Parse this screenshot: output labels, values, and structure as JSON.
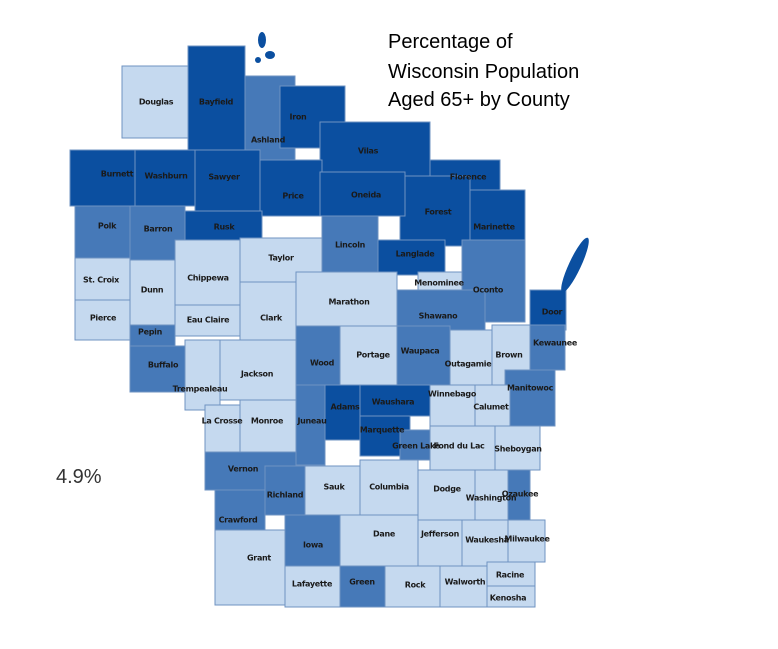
{
  "map": {
    "title_lines": [
      "Percentage of",
      "Wisconsin Population",
      "Aged 65+ by County"
    ],
    "label_fragment": "4.9%",
    "counties": [
      {
        "name": "Douglas",
        "color": "#c5d9ef"
      },
      {
        "name": "Bayfield",
        "color": "#0b4fa0"
      },
      {
        "name": "Ashland",
        "color": "#4679b8"
      },
      {
        "name": "Iron",
        "color": "#0b4fa0"
      },
      {
        "name": "Vilas",
        "color": "#0b4fa0"
      },
      {
        "name": "Florence",
        "color": "#0b4fa0"
      },
      {
        "name": "Forest",
        "color": "#0b4fa0"
      },
      {
        "name": "Marinette",
        "color": "#0b4fa0"
      },
      {
        "name": "Burnett",
        "color": "#0b4fa0"
      },
      {
        "name": "Washburn",
        "color": "#0b4fa0"
      },
      {
        "name": "Sawyer",
        "color": "#0b4fa0"
      },
      {
        "name": "Price",
        "color": "#0b4fa0"
      },
      {
        "name": "Oneida",
        "color": "#0b4fa0"
      },
      {
        "name": "Polk",
        "color": "#4679b8"
      },
      {
        "name": "Barron",
        "color": "#4679b8"
      },
      {
        "name": "Rusk",
        "color": "#0b4fa0"
      },
      {
        "name": "Lincoln",
        "color": "#4679b8"
      },
      {
        "name": "Langlade",
        "color": "#0b4fa0"
      },
      {
        "name": "Taylor",
        "color": "#c5d9ef"
      },
      {
        "name": "Chippewa",
        "color": "#c5d9ef"
      },
      {
        "name": "St. Croix",
        "color": "#c5d9ef"
      },
      {
        "name": "Dunn",
        "color": "#c5d9ef"
      },
      {
        "name": "Menominee",
        "color": "#c5d9ef"
      },
      {
        "name": "Oconto",
        "color": "#4679b8"
      },
      {
        "name": "Pierce",
        "color": "#c5d9ef"
      },
      {
        "name": "Pepin",
        "color": "#4679b8"
      },
      {
        "name": "Eau Claire",
        "color": "#c5d9ef"
      },
      {
        "name": "Clark",
        "color": "#c5d9ef"
      },
      {
        "name": "Marathon",
        "color": "#c5d9ef"
      },
      {
        "name": "Shawano",
        "color": "#4679b8"
      },
      {
        "name": "Door",
        "color": "#0b4fa0"
      },
      {
        "name": "Buffalo",
        "color": "#4679b8"
      },
      {
        "name": "Trempealeau",
        "color": "#c5d9ef"
      },
      {
        "name": "Jackson",
        "color": "#c5d9ef"
      },
      {
        "name": "Wood",
        "color": "#4679b8"
      },
      {
        "name": "Portage",
        "color": "#c5d9ef"
      },
      {
        "name": "Waupaca",
        "color": "#4679b8"
      },
      {
        "name": "Outagamie",
        "color": "#c5d9ef"
      },
      {
        "name": "Brown",
        "color": "#c5d9ef"
      },
      {
        "name": "Kewaunee",
        "color": "#4679b8"
      },
      {
        "name": "Manitowoc",
        "color": "#4679b8"
      },
      {
        "name": "Calumet",
        "color": "#c5d9ef"
      },
      {
        "name": "Winnebago",
        "color": "#c5d9ef"
      },
      {
        "name": "Waushara",
        "color": "#0b4fa0"
      },
      {
        "name": "Adams",
        "color": "#0b4fa0"
      },
      {
        "name": "Marquette",
        "color": "#0b4fa0"
      },
      {
        "name": "Green Lake",
        "color": "#4679b8"
      },
      {
        "name": "Fond du Lac",
        "color": "#c5d9ef"
      },
      {
        "name": "Sheboygan",
        "color": "#c5d9ef"
      },
      {
        "name": "La Crosse",
        "color": "#c5d9ef"
      },
      {
        "name": "Monroe",
        "color": "#c5d9ef"
      },
      {
        "name": "Juneau",
        "color": "#4679b8"
      },
      {
        "name": "Vernon",
        "color": "#4679b8"
      },
      {
        "name": "Richland",
        "color": "#4679b8"
      },
      {
        "name": "Sauk",
        "color": "#c5d9ef"
      },
      {
        "name": "Columbia",
        "color": "#c5d9ef"
      },
      {
        "name": "Dodge",
        "color": "#c5d9ef"
      },
      {
        "name": "Washington",
        "color": "#c5d9ef"
      },
      {
        "name": "Ozaukee",
        "color": "#4679b8"
      },
      {
        "name": "Crawford",
        "color": "#4679b8"
      },
      {
        "name": "Grant",
        "color": "#c5d9ef"
      },
      {
        "name": "Iowa",
        "color": "#4679b8"
      },
      {
        "name": "Dane",
        "color": "#c5d9ef"
      },
      {
        "name": "Jefferson",
        "color": "#c5d9ef"
      },
      {
        "name": "Waukesha",
        "color": "#c5d9ef"
      },
      {
        "name": "Milwaukee",
        "color": "#c5d9ef"
      },
      {
        "name": "Lafayette",
        "color": "#c5d9ef"
      },
      {
        "name": "Green",
        "color": "#4679b8"
      },
      {
        "name": "Rock",
        "color": "#c5d9ef"
      },
      {
        "name": "Walworth",
        "color": "#c5d9ef"
      },
      {
        "name": "Racine",
        "color": "#c5d9ef"
      },
      {
        "name": "Kenosha",
        "color": "#c5d9ef"
      }
    ]
  }
}
